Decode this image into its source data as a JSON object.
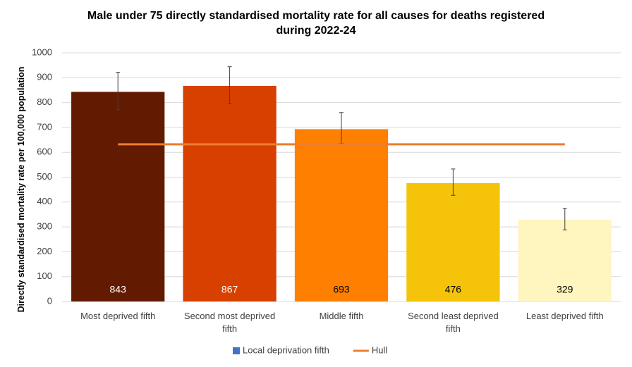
{
  "chart_data": {
    "type": "bar",
    "title": "Male under 75 directly standardised mortality rate for all causes for deaths registered during 2022-24",
    "y_label": "Directly standardised mortality rate per 100,000 population",
    "categories": [
      "Most deprived fifth",
      "Second most deprived fifth",
      "Middle fifth",
      "Second least deprived fifth",
      "Least deprived fifth"
    ],
    "series": [
      {
        "name": "Local deprivation fifth",
        "color": "#4472c4",
        "type": "bar",
        "values": [
          843,
          867,
          693,
          476,
          329
        ],
        "ci_lower": [
          771,
          795,
          636,
          427,
          288
        ],
        "ci_upper": [
          922,
          944,
          760,
          533,
          375
        ],
        "bar_colors": [
          "#621b00",
          "#d84000",
          "#ff8000",
          "#f5c40a",
          "#fff5be"
        ],
        "label_colors": [
          "#ffffff",
          "#ffffff",
          "#000000",
          "#000000",
          "#000000"
        ]
      },
      {
        "name": "Hull",
        "color": "#ed7d31",
        "type": "line",
        "values": [
          632,
          632,
          632,
          632,
          632
        ]
      }
    ],
    "ylim": [
      0,
      1000
    ],
    "yticks": [
      0,
      100,
      200,
      300,
      400,
      500,
      600,
      700,
      800,
      900,
      1000
    ],
    "grid": true,
    "legend": "bottom"
  }
}
